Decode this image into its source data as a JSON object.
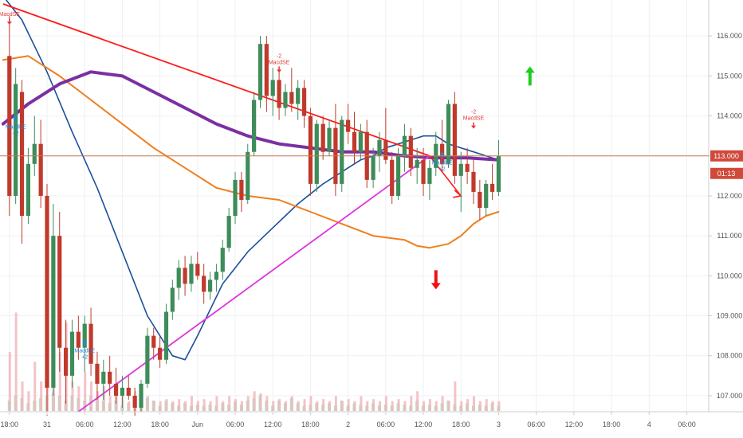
{
  "chart_data": {
    "type": "candlestick",
    "title": "",
    "xlabel": "",
    "ylabel": "",
    "ylim": [
      106.6,
      116.9
    ],
    "y_ticks": [
      107,
      108,
      109,
      110,
      111,
      112,
      113,
      114,
      115,
      116
    ],
    "y_tick_labels": [
      "107.000",
      "108.000",
      "109.000",
      "110.000",
      "111.000",
      "112.000",
      "113.000",
      "114.000",
      "115.000",
      "116.000"
    ],
    "x_ticks": [
      {
        "label": "18:00",
        "t": 0
      },
      {
        "label": "31",
        "t": 6
      },
      {
        "label": "06:00",
        "t": 12
      },
      {
        "label": "12:00",
        "t": 18
      },
      {
        "label": "18:00",
        "t": 24
      },
      {
        "label": "Jun",
        "t": 30
      },
      {
        "label": "06:00",
        "t": 36
      },
      {
        "label": "12:00",
        "t": 42
      },
      {
        "label": "18:00",
        "t": 48
      },
      {
        "label": "2",
        "t": 54
      },
      {
        "label": "06:00",
        "t": 60
      },
      {
        "label": "12:00",
        "t": 66
      },
      {
        "label": "18:00",
        "t": 72
      },
      {
        "label": "3",
        "t": 78
      },
      {
        "label": "06:00",
        "t": 84
      },
      {
        "label": "12:00",
        "t": 90
      },
      {
        "label": "18:00",
        "t": 96
      },
      {
        "label": "4",
        "t": 102
      },
      {
        "label": "06:00",
        "t": 108
      }
    ],
    "x_range": [
      -1.5,
      111.5
    ],
    "colors": {
      "up": "#3d8c5a",
      "down": "#c0392b",
      "ema_blue": "#1c4f9c",
      "ma_orange": "#f07f1e",
      "ma_purple": "#7b2fa3",
      "trendline_red": "#ff1a1a",
      "trendline_magenta": "#e033e0",
      "price_line": "#c87a55",
      "price_badge": "#cf4a3a",
      "signal_up": "#1e88e5",
      "signal_down": "#e53935",
      "arrow_green": "#1fcc1f",
      "arrow_red": "#ee1111",
      "vol_up": "#b7dcc3",
      "vol_down": "#f2b8bd",
      "grid": "#eef0f3",
      "axis_text": "#555555"
    },
    "last_price": 113.0,
    "last_price_label": "113.000",
    "countdown_label": "01:13",
    "candles": [
      [
        115.5,
        116.5,
        111.5,
        112.0
      ],
      [
        112.0,
        115.2,
        111.8,
        114.8
      ],
      [
        114.6,
        114.9,
        110.8,
        111.5
      ],
      [
        111.5,
        113.2,
        111.3,
        112.8
      ],
      [
        112.8,
        114.0,
        112.5,
        113.3
      ],
      [
        113.3,
        113.9,
        111.7,
        112.0
      ],
      [
        112.0,
        112.3,
        106.5,
        107.2
      ],
      [
        107.2,
        111.8,
        107.0,
        111.0
      ],
      [
        111.0,
        111.6,
        107.6,
        108.2
      ],
      [
        108.2,
        108.9,
        106.8,
        107.5
      ],
      [
        107.5,
        108.9,
        107.2,
        108.6
      ],
      [
        108.6,
        109.0,
        107.9,
        108.2
      ],
      [
        108.2,
        109.0,
        107.6,
        108.8
      ],
      [
        108.8,
        109.2,
        107.5,
        107.8
      ],
      [
        107.8,
        108.1,
        106.9,
        107.3
      ],
      [
        107.3,
        107.9,
        106.9,
        107.6
      ],
      [
        107.6,
        108.0,
        107.0,
        107.3
      ],
      [
        107.3,
        107.7,
        106.8,
        107.0
      ],
      [
        107.0,
        107.5,
        106.7,
        107.2
      ],
      [
        107.2,
        107.5,
        106.9,
        107.0
      ],
      [
        107.0,
        107.2,
        106.5,
        106.7
      ],
      [
        106.7,
        107.4,
        106.6,
        107.3
      ],
      [
        107.3,
        108.7,
        107.2,
        108.5
      ],
      [
        108.5,
        108.7,
        107.9,
        108.2
      ],
      [
        108.2,
        108.5,
        107.7,
        107.9
      ],
      [
        107.9,
        109.3,
        107.8,
        109.1
      ],
      [
        109.1,
        109.9,
        108.9,
        109.7
      ],
      [
        109.7,
        110.4,
        109.4,
        110.2
      ],
      [
        110.2,
        110.5,
        109.5,
        109.8
      ],
      [
        109.8,
        110.5,
        109.6,
        110.3
      ],
      [
        110.3,
        110.6,
        109.9,
        110.0
      ],
      [
        110.0,
        110.3,
        109.3,
        109.6
      ],
      [
        109.6,
        110.1,
        109.4,
        109.9
      ],
      [
        109.9,
        110.3,
        109.6,
        110.1
      ],
      [
        110.1,
        110.9,
        109.9,
        110.7
      ],
      [
        110.7,
        111.7,
        110.6,
        111.5
      ],
      [
        111.5,
        112.6,
        111.3,
        112.4
      ],
      [
        112.4,
        112.6,
        111.6,
        111.9
      ],
      [
        111.9,
        113.3,
        111.8,
        113.1
      ],
      [
        113.1,
        114.6,
        113.0,
        114.4
      ],
      [
        114.4,
        116.0,
        114.2,
        115.8
      ],
      [
        115.8,
        116.0,
        114.1,
        114.5
      ],
      [
        114.5,
        115.2,
        114.0,
        114.9
      ],
      [
        114.9,
        115.1,
        113.9,
        114.2
      ],
      [
        114.2,
        114.8,
        114.0,
        114.6
      ],
      [
        114.6,
        115.2,
        114.1,
        114.3
      ],
      [
        114.3,
        114.9,
        113.9,
        114.7
      ],
      [
        114.7,
        114.9,
        113.7,
        114.0
      ],
      [
        114.0,
        114.2,
        112.0,
        112.3
      ],
      [
        112.3,
        113.9,
        112.1,
        113.8
      ],
      [
        113.8,
        114.0,
        112.9,
        113.1
      ],
      [
        113.1,
        113.9,
        113.0,
        113.7
      ],
      [
        113.7,
        114.3,
        112.0,
        112.3
      ],
      [
        112.3,
        114.0,
        112.1,
        113.9
      ],
      [
        113.9,
        114.3,
        113.3,
        113.6
      ],
      [
        113.6,
        114.1,
        112.8,
        113.1
      ],
      [
        113.1,
        113.8,
        112.9,
        113.6
      ],
      [
        113.6,
        113.9,
        112.2,
        112.4
      ],
      [
        112.4,
        113.2,
        112.2,
        113.0
      ],
      [
        113.0,
        113.6,
        112.6,
        113.4
      ],
      [
        113.4,
        114.2,
        112.8,
        112.9
      ],
      [
        112.9,
        113.1,
        111.8,
        112.0
      ],
      [
        112.0,
        113.2,
        111.9,
        113.0
      ],
      [
        113.0,
        113.8,
        112.6,
        113.5
      ],
      [
        113.5,
        113.7,
        112.5,
        112.7
      ],
      [
        112.7,
        113.2,
        112.3,
        112.9
      ],
      [
        112.9,
        113.2,
        112.0,
        112.3
      ],
      [
        112.3,
        112.9,
        111.9,
        112.7
      ],
      [
        112.7,
        113.6,
        112.5,
        113.3
      ],
      [
        113.3,
        113.9,
        112.6,
        112.8
      ],
      [
        112.8,
        114.4,
        112.7,
        114.3
      ],
      [
        114.3,
        114.6,
        112.3,
        112.5
      ],
      [
        112.5,
        113.1,
        111.6,
        112.8
      ],
      [
        112.8,
        113.2,
        112.3,
        112.6
      ],
      [
        112.6,
        112.9,
        111.8,
        112.1
      ],
      [
        112.1,
        112.4,
        111.4,
        111.7
      ],
      [
        111.7,
        112.4,
        111.5,
        112.3
      ],
      [
        112.3,
        112.8,
        111.9,
        112.1
      ],
      [
        112.1,
        113.4,
        112.0,
        113.0
      ]
    ],
    "series": [
      {
        "name": "",
        "style": "ema_blue",
        "t": [
          -1,
          2,
          6,
          10,
          14,
          18,
          22,
          26,
          28,
          30,
          34,
          38,
          42,
          46,
          50,
          52,
          54,
          56,
          58,
          60,
          62,
          64,
          66,
          68,
          70,
          72,
          74,
          76,
          78
        ],
        "values": [
          117.0,
          116.4,
          115.1,
          113.6,
          112.2,
          110.6,
          109.0,
          108.0,
          107.9,
          108.5,
          109.8,
          110.6,
          111.2,
          111.8,
          112.3,
          112.5,
          112.7,
          112.9,
          113.0,
          113.2,
          113.3,
          113.4,
          113.5,
          113.5,
          113.3,
          113.2,
          113.1,
          113.0,
          112.9
        ]
      },
      {
        "name": "",
        "style": "ma_orange",
        "t": [
          -1,
          3,
          8,
          13,
          18,
          23,
          28,
          33,
          38,
          43,
          48,
          53,
          58,
          63,
          65,
          67,
          70,
          72,
          74,
          76,
          78
        ],
        "values": [
          115.4,
          115.5,
          115.0,
          114.4,
          113.8,
          113.2,
          112.7,
          112.2,
          112.0,
          111.9,
          111.6,
          111.3,
          111.0,
          110.9,
          110.75,
          110.7,
          110.8,
          111.0,
          111.3,
          111.5,
          111.6
        ]
      },
      {
        "name": "",
        "style": "ma_purple",
        "t": [
          -1,
          3,
          8,
          13,
          18,
          23,
          28,
          33,
          38,
          43,
          48,
          53,
          58,
          63,
          68,
          73,
          78
        ],
        "values": [
          113.8,
          114.3,
          114.8,
          115.1,
          115.0,
          114.6,
          114.2,
          113.8,
          113.5,
          113.3,
          113.2,
          113.1,
          113.1,
          113.0,
          112.95,
          112.95,
          112.9
        ]
      }
    ],
    "trendlines": [
      {
        "style": "trendline_red",
        "from": [
          -1,
          116.8
        ],
        "to": [
          67,
          113.0
        ]
      },
      {
        "style": "trendline_magenta",
        "from": [
          11,
          106.6
        ],
        "to": [
          67,
          113.0
        ]
      }
    ],
    "signals": [
      {
        "t": 0,
        "y": 116.3,
        "type": "down",
        "label": "MacdSE",
        "label2": ""
      },
      {
        "t": 1,
        "y": 114.0,
        "type": "up",
        "label": "MacdLE",
        "label2": "+2"
      },
      {
        "t": 12,
        "y": 108.4,
        "type": "up",
        "label": "MacdLE",
        "label2": "+2"
      },
      {
        "t": 43,
        "y": 115.1,
        "type": "down",
        "label": "MacdSE",
        "label2": "-2"
      },
      {
        "t": 69,
        "y": 113.1,
        "type": "up",
        "label": "MacdLE",
        "label2": "+2"
      },
      {
        "t": 74,
        "y": 113.7,
        "type": "down",
        "label": "MacdSE",
        "label2": "-2"
      }
    ],
    "arrows": [
      {
        "t": 83,
        "y": 115.0,
        "dir": "up",
        "style": "arrow_green"
      },
      {
        "t": 68,
        "y": 109.9,
        "dir": "down",
        "style": "arrow_red"
      }
    ],
    "volume_up": [
      0.2,
      0.3,
      0.25,
      0.15,
      0.2,
      0.25,
      0.3,
      0.35,
      0.3,
      0.2,
      0.3,
      0.25,
      0.2,
      0.3,
      0.25,
      0.2,
      0.15,
      0.2,
      0.1,
      0.15,
      0.1,
      0.2,
      0.25,
      0.2,
      0.1,
      0.2,
      0.15,
      0.1,
      0.15,
      0.1,
      0.12,
      0.1,
      0.12,
      0.1,
      0.15,
      0.12,
      0.18,
      0.12,
      0.2,
      0.25,
      0.3,
      0.2,
      0.1,
      0.2,
      0.15,
      0.25,
      0.15,
      0.1,
      0.12,
      0.15,
      0.12,
      0.15,
      0.1,
      0.2,
      0.1,
      0.15,
      0.12,
      0.1,
      0.15,
      0.1,
      0.12,
      0.1,
      0.15,
      0.12,
      0.1,
      0.2,
      0.1,
      0.12,
      0.1,
      0.15,
      0.2,
      0.12,
      0.1,
      0.15,
      0.1,
      0.12,
      0.1,
      0.15,
      0.1
    ],
    "volume_down": [
      0.6,
      1.0,
      0.3,
      0.2,
      0.5,
      0.3,
      0.8,
      0.4,
      0.6,
      0.9,
      0.3,
      0.25,
      0.4,
      0.3,
      0.2,
      0.25,
      0.15,
      0.2,
      0.15,
      0.1,
      0.2,
      0.1,
      0.15,
      0.1,
      0.1,
      0.12,
      0.1,
      0.12,
      0.1,
      0.15,
      0.1,
      0.12,
      0.1,
      0.15,
      0.1,
      0.15,
      0.12,
      0.1,
      0.15,
      0.2,
      0.18,
      0.15,
      0.1,
      0.12,
      0.1,
      0.15,
      0.1,
      0.12,
      0.15,
      0.1,
      0.12,
      0.1,
      0.15,
      0.1,
      0.12,
      0.1,
      0.15,
      0.1,
      0.12,
      0.1,
      0.15,
      0.1,
      0.12,
      0.1,
      0.15,
      0.2,
      0.1,
      0.12,
      0.1,
      0.15,
      0.1,
      0.3,
      0.1,
      0.12,
      0.15,
      0.1,
      0.12,
      0.1,
      0.1
    ]
  }
}
